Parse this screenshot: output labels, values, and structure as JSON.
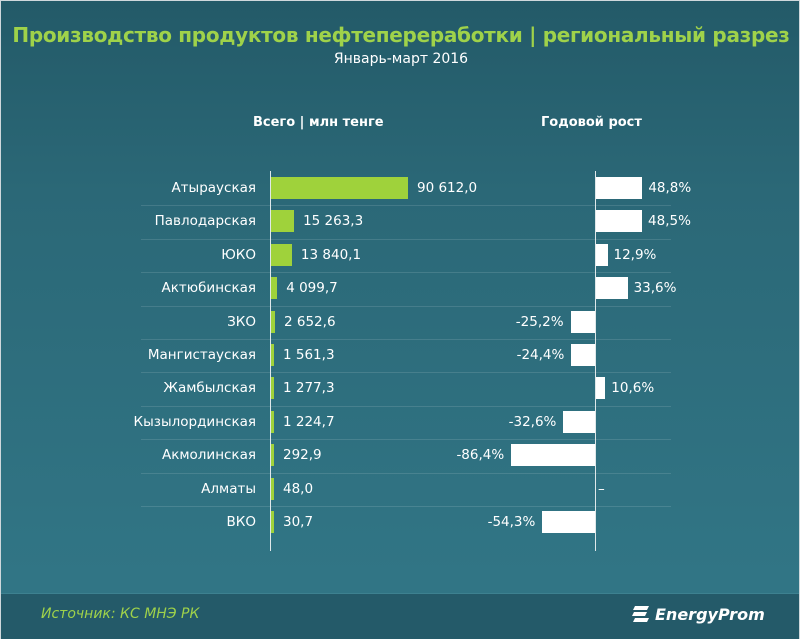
{
  "chart_data": {
    "type": "bar",
    "title": "Производство продуктов нефтепереработки | региональный разрез",
    "subtitle": "Январь-март 2016",
    "column_headers": [
      "Всего | млн тенге",
      "Годовой рост"
    ],
    "categories": [
      "Атырауская",
      "Павлодарская",
      "ЮКО",
      "Актюбинская",
      "ЗКО",
      "Мангистауская",
      "Жамбылская",
      "Кызылординская",
      "Акмолинская",
      "Алматы",
      "ВКО"
    ],
    "series": [
      {
        "name": "Всего | млн тенге",
        "values": [
          90612.0,
          15263.3,
          13840.1,
          4099.7,
          2652.6,
          1561.3,
          1277.3,
          1224.7,
          292.9,
          48.0,
          30.7
        ],
        "labels": [
          "90 612,0",
          "15 263,3",
          "13 840,1",
          "4 099,7",
          "2 652,6",
          "1 561,3",
          "1 277,3",
          "1 224,7",
          "292,9",
          "48,0",
          "30,7"
        ],
        "color": "#9fd23b"
      },
      {
        "name": "Годовой рост",
        "values": [
          48.8,
          48.5,
          12.9,
          33.6,
          -25.2,
          -24.4,
          10.6,
          -32.6,
          -86.4,
          null,
          -54.3
        ],
        "labels": [
          "48,8%",
          "48,5%",
          "12,9%",
          "33,6%",
          "-25,2%",
          "-24,4%",
          "10,6%",
          "-32,6%",
          "-86,4%",
          "–",
          "-54,3%"
        ],
        "color": "#ffffff"
      }
    ]
  },
  "footer": {
    "source": "Источник: КС МНЭ РК",
    "logo": "EnergyProm"
  }
}
